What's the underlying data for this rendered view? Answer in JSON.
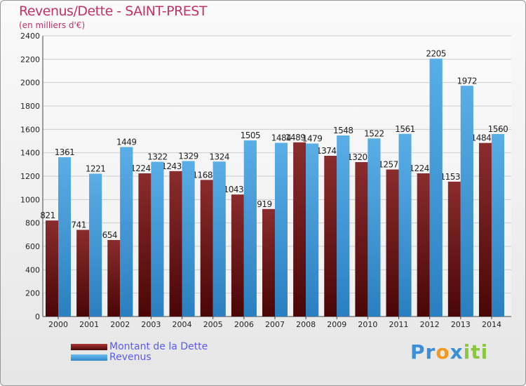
{
  "chart_data": {
    "type": "bar",
    "title": "Revenus/Dette - SAINT-PREST",
    "subtitle": "(en milliers d'€)",
    "categories": [
      "2000",
      "2001",
      "2002",
      "2003",
      "2004",
      "2005",
      "2006",
      "2007",
      "2008",
      "2009",
      "2010",
      "2011",
      "2012",
      "2013",
      "2014"
    ],
    "series": [
      {
        "name": "Montant de la Dette",
        "color": "#7a1f22",
        "values": [
          821,
          741,
          654,
          1224,
          1243,
          1168,
          1043,
          919,
          1489,
          1374,
          1320,
          1257,
          1224,
          1153,
          1484
        ]
      },
      {
        "name": "Revenus",
        "color": "#4aa3e2",
        "values": [
          1361,
          1221,
          1449,
          1322,
          1329,
          1324,
          1505,
          1484,
          1479,
          1548,
          1522,
          1561,
          2205,
          1972,
          1560
        ]
      }
    ],
    "ylim": [
      0,
      2400
    ],
    "yticks": [
      0,
      200,
      400,
      600,
      800,
      1000,
      1200,
      1400,
      1600,
      1800,
      2000,
      2200,
      2400
    ],
    "grid": true,
    "legend": "bottom-left"
  },
  "logo": "Proxiti"
}
